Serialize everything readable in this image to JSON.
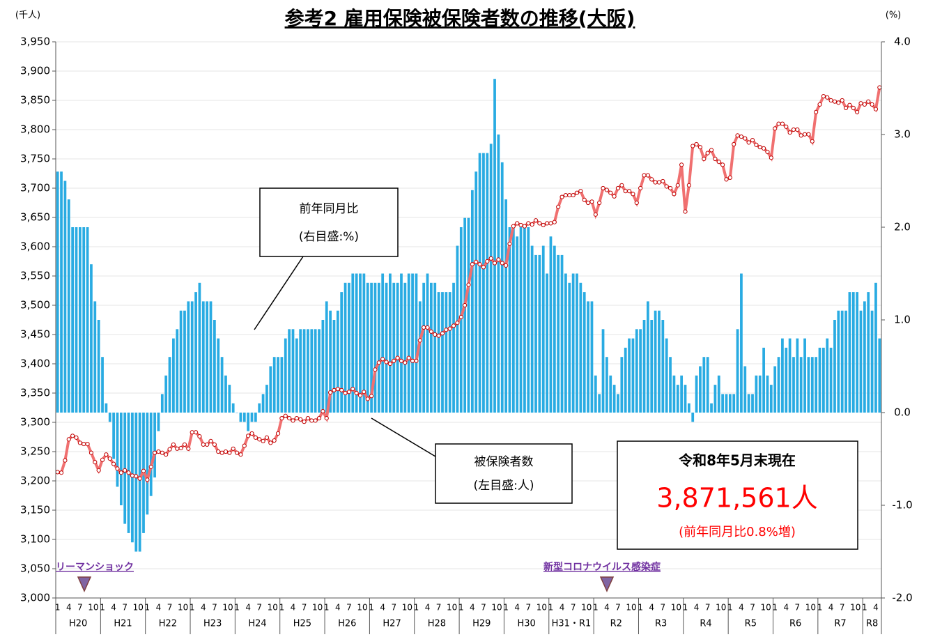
{
  "chart_data": {
    "type": "combo",
    "title": "参考2 雇用保険被保険者数の推移(大阪)",
    "y_unit": "(千人)",
    "y2_unit": "(%)",
    "groups": [
      "H20",
      "H21",
      "H22",
      "H23",
      "H24",
      "H25",
      "H26",
      "H27",
      "H28",
      "H29",
      "H30",
      "H31・R1",
      "R2",
      "R3",
      "R4",
      "R5",
      "R6",
      "R7",
      "R8"
    ],
    "month_ticks": [
      "1",
      "4",
      "7",
      "10"
    ],
    "ylim": [
      3000,
      3950
    ],
    "yticks": [
      {
        "value": 3000,
        "label": "3,000"
      },
      {
        "value": 3050,
        "label": "3,050"
      },
      {
        "value": 3100,
        "label": "3,100"
      },
      {
        "value": 3150,
        "label": "3,150"
      },
      {
        "value": 3200,
        "label": "3,200"
      },
      {
        "value": 3250,
        "label": "3,250"
      },
      {
        "value": 3300,
        "label": "3,300"
      },
      {
        "value": 3350,
        "label": "3,350"
      },
      {
        "value": 3400,
        "label": "3,400"
      },
      {
        "value": 3450,
        "label": "3,450"
      },
      {
        "value": 3500,
        "label": "3,500"
      },
      {
        "value": 3550,
        "label": "3,550"
      },
      {
        "value": 3600,
        "label": "3,600"
      },
      {
        "value": 3650,
        "label": "3,650"
      },
      {
        "value": 3700,
        "label": "3,700"
      },
      {
        "value": 3750,
        "label": "3,750"
      },
      {
        "value": 3800,
        "label": "3,800"
      },
      {
        "value": 3850,
        "label": "3,850"
      },
      {
        "value": 3900,
        "label": "3,900"
      },
      {
        "value": 3950,
        "label": "3,950"
      }
    ],
    "y2lim": [
      -2,
      4
    ],
    "y2ticks": [
      {
        "value": -2,
        "label": "-2.0"
      },
      {
        "value": -1,
        "label": "-1.0"
      },
      {
        "value": 0,
        "label": "0.0"
      },
      {
        "value": 1,
        "label": "1.0"
      },
      {
        "value": 2,
        "label": "2.0"
      },
      {
        "value": 3,
        "label": "3.0"
      },
      {
        "value": 4,
        "label": "4.0"
      }
    ],
    "grid": true,
    "series": [
      {
        "name": "前年同月比",
        "scale_note": "(右目盛:%)",
        "type": "bar",
        "axis": "y2",
        "color": "#29abe2",
        "values": [
          2.6,
          2.6,
          2.5,
          2.3,
          2.0,
          2.0,
          2.0,
          2.0,
          2.0,
          1.6,
          1.2,
          1.0,
          0.6,
          0.1,
          -0.1,
          -0.5,
          -0.8,
          -1.0,
          -1.2,
          -1.3,
          -1.4,
          -1.5,
          -1.5,
          -1.3,
          -1.1,
          -0.9,
          -0.7,
          -0.2,
          0.2,
          0.4,
          0.6,
          0.8,
          0.9,
          1.1,
          1.1,
          1.2,
          1.2,
          1.3,
          1.4,
          1.2,
          1.2,
          1.2,
          1.0,
          0.8,
          0.6,
          0.4,
          0.3,
          0.1,
          0.0,
          -0.1,
          -0.1,
          -0.2,
          -0.1,
          -0.1,
          0.1,
          0.2,
          0.3,
          0.5,
          0.6,
          0.6,
          0.6,
          0.8,
          0.9,
          0.9,
          0.8,
          0.9,
          0.9,
          0.9,
          0.9,
          0.9,
          0.9,
          1.0,
          1.2,
          1.1,
          1.0,
          1.1,
          1.3,
          1.4,
          1.4,
          1.5,
          1.5,
          1.5,
          1.5,
          1.4,
          1.4,
          1.4,
          1.4,
          1.5,
          1.4,
          1.5,
          1.4,
          1.4,
          1.5,
          1.4,
          1.5,
          1.5,
          1.5,
          1.2,
          1.4,
          1.5,
          1.4,
          1.4,
          1.3,
          1.3,
          1.3,
          1.3,
          1.4,
          1.8,
          2.0,
          2.1,
          2.1,
          2.4,
          2.6,
          2.8,
          2.8,
          2.8,
          2.9,
          3.6,
          3.0,
          2.7,
          2.3,
          2.0,
          2.0,
          1.9,
          2.0,
          2.0,
          2.0,
          1.8,
          1.7,
          1.7,
          1.8,
          1.5,
          1.9,
          1.8,
          1.7,
          1.7,
          1.5,
          1.4,
          1.5,
          1.5,
          1.4,
          1.3,
          1.2,
          1.2,
          0.4,
          0.2,
          0.9,
          0.6,
          0.4,
          0.3,
          0.2,
          0.6,
          0.7,
          0.8,
          0.8,
          0.9,
          0.9,
          1.0,
          1.2,
          1.0,
          1.1,
          1.1,
          1.0,
          0.8,
          0.6,
          0.4,
          0.3,
          0.4,
          0.3,
          0.1,
          -0.1,
          0.4,
          0.5,
          0.6,
          0.6,
          0.1,
          0.3,
          0.4,
          0.2,
          0.2,
          0.2,
          0.2,
          0.9,
          1.5,
          0.5,
          0.2,
          0.2,
          0.4,
          0.4,
          0.7,
          0.4,
          0.3,
          0.5,
          0.6,
          0.8,
          0.7,
          0.8,
          0.6,
          0.8,
          0.6,
          0.8,
          0.6,
          0.6,
          0.6,
          0.7,
          0.7,
          0.8,
          0.7,
          1.0,
          1.1,
          1.1,
          1.1,
          1.3,
          1.3,
          1.3,
          1.1,
          1.2,
          1.3,
          1.1,
          1.4,
          0.8
        ]
      },
      {
        "name": "被保険者数",
        "scale_note": "(左目盛:人)",
        "type": "line",
        "axis": "y",
        "color": "#f07070",
        "values": [
          3215,
          3214,
          3235,
          3271,
          3277,
          3274,
          3265,
          3263,
          3263,
          3248,
          3232,
          3218,
          3236,
          3245,
          3238,
          3229,
          3221,
          3214,
          3218,
          3214,
          3209,
          3208,
          3204,
          3217,
          3202,
          3224,
          3248,
          3250,
          3248,
          3245,
          3254,
          3262,
          3255,
          3256,
          3262,
          3255,
          3283,
          3283,
          3276,
          3262,
          3262,
          3268,
          3262,
          3250,
          3248,
          3250,
          3248,
          3255,
          3248,
          3245,
          3260,
          3277,
          3281,
          3274,
          3271,
          3268,
          3274,
          3265,
          3269,
          3281,
          3307,
          3311,
          3307,
          3303,
          3307,
          3305,
          3301,
          3307,
          3303,
          3303,
          3307,
          3319,
          3307,
          3351,
          3355,
          3357,
          3355,
          3350,
          3352,
          3357,
          3350,
          3346,
          3352,
          3340,
          3345,
          3390,
          3402,
          3408,
          3403,
          3400,
          3405,
          3410,
          3405,
          3402,
          3410,
          3405,
          3405,
          3440,
          3462,
          3462,
          3455,
          3450,
          3448,
          3452,
          3458,
          3460,
          3465,
          3470,
          3480,
          3500,
          3535,
          3570,
          3574,
          3570,
          3565,
          3575,
          3580,
          3572,
          3578,
          3572,
          3568,
          3605,
          3635,
          3640,
          3637,
          3635,
          3640,
          3638,
          3645,
          3640,
          3637,
          3640,
          3640,
          3642,
          3668,
          3685,
          3688,
          3688,
          3688,
          3692,
          3695,
          3680,
          3675,
          3677,
          3655,
          3675,
          3700,
          3697,
          3692,
          3686,
          3700,
          3705,
          3695,
          3695,
          3690,
          3675,
          3700,
          3722,
          3722,
          3715,
          3710,
          3710,
          3712,
          3703,
          3700,
          3690,
          3705,
          3740,
          3660,
          3705,
          3772,
          3775,
          3770,
          3750,
          3760,
          3765,
          3750,
          3745,
          3740,
          3715,
          3718,
          3775,
          3790,
          3788,
          3785,
          3778,
          3782,
          3774,
          3770,
          3768,
          3762,
          3752,
          3802,
          3810,
          3810,
          3805,
          3795,
          3800,
          3800,
          3790,
          3792,
          3792,
          3780,
          3830,
          3843,
          3857,
          3855,
          3850,
          3848,
          3846,
          3850,
          3837,
          3842,
          3837,
          3830,
          3845,
          3843,
          3848,
          3843,
          3835,
          3872
        ]
      }
    ],
    "events": [
      "リーマンショック",
      "新型コロナウイルス感染症"
    ],
    "info_box": {
      "title": "令和8年5月末現在",
      "value": "3,871,561人",
      "note": "(前年同月比0.8%増)"
    }
  }
}
